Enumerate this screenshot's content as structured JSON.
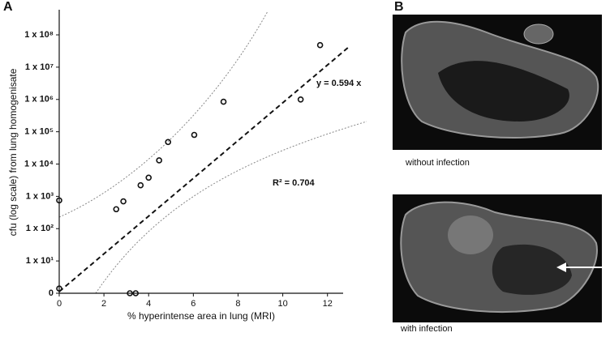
{
  "chart_data": {
    "type": "scatter",
    "panel_label": "A",
    "x_label": "% hyperintense area in lung (MRI)",
    "y_label": "cfu (log scale) from lung homogenisate",
    "annotations": [
      "y = 0.594 x",
      "R² = 0.704"
    ],
    "log_y": true,
    "color": "#111111",
    "xlim": [
      0,
      12.7
    ],
    "ylim": [
      1,
      600000000
    ],
    "xticks": [
      0,
      2,
      4,
      6,
      8,
      10,
      12
    ],
    "yticks": [
      {
        "value": 1,
        "label": "0"
      },
      {
        "value": 10,
        "label": "1 x 10¹"
      },
      {
        "value": 100,
        "label": "1 x 10²"
      },
      {
        "value": 1000,
        "label": "1 x 10³"
      },
      {
        "value": 10000,
        "label": "1 x 10⁴"
      },
      {
        "value": 100000,
        "label": "1 x 10⁵"
      },
      {
        "value": 1000000,
        "label": "1 x 10⁶"
      },
      {
        "value": 10000000,
        "label": "1 x 10⁷"
      },
      {
        "value": 100000000,
        "label": "1 x 10⁸"
      }
    ],
    "x": [
      0,
      0,
      2.55,
      2.87,
      3.16,
      3.42,
      3.64,
      4.0,
      4.47,
      4.87,
      6.04,
      7.35,
      10.8,
      11.67
    ],
    "values": [
      750,
      1.4,
      400,
      700,
      1,
      1,
      2200,
      3800,
      13000,
      48000,
      80000,
      850000,
      1000000,
      48000000
    ]
  },
  "panel_b": {
    "label": "B",
    "captions": [
      "without infection",
      "with infection"
    ]
  }
}
